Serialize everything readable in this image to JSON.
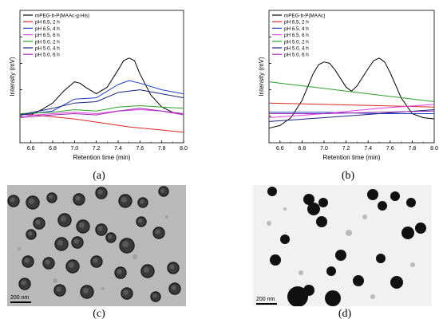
{
  "chart_data": [
    {
      "type": "line",
      "panel": "a",
      "xlabel": "Retention time (min)",
      "ylabel": "Intensity (mV)",
      "xlim": [
        6.5,
        8.0
      ],
      "ylim": [
        0,
        1
      ],
      "x_ticks": [
        "6.6",
        "6.8",
        "7.0",
        "7.2",
        "7.4",
        "7.6",
        "7.8",
        "8.0"
      ],
      "legend_position": "top-left",
      "series": [
        {
          "name": "mPEG-b-P(MAAc-g-His)",
          "color": "#000000",
          "x": [
            6.5,
            6.6,
            6.7,
            6.8,
            6.9,
            7.0,
            7.05,
            7.1,
            7.2,
            7.3,
            7.4,
            7.45,
            7.5,
            7.55,
            7.6,
            7.7,
            7.8,
            7.9,
            8.0
          ],
          "y": [
            0.22,
            0.21,
            0.25,
            0.3,
            0.39,
            0.46,
            0.45,
            0.42,
            0.37,
            0.42,
            0.55,
            0.62,
            0.64,
            0.62,
            0.52,
            0.36,
            0.27,
            0.23,
            0.21
          ]
        },
        {
          "name": "pH 6.5, 2 h",
          "color": "#d62728",
          "x": [
            6.5,
            6.75,
            7.0,
            7.25,
            7.5,
            7.75,
            8.0
          ],
          "y": [
            0.22,
            0.2,
            0.18,
            0.15,
            0.12,
            0.1,
            0.08
          ]
        },
        {
          "name": "pH 6.5, 4 h",
          "color": "#1f3fc4",
          "x": [
            6.5,
            6.8,
            7.0,
            7.2,
            7.4,
            7.5,
            7.6,
            7.8,
            8.0
          ],
          "y": [
            0.21,
            0.24,
            0.33,
            0.34,
            0.44,
            0.47,
            0.45,
            0.4,
            0.37
          ]
        },
        {
          "name": "pH 6.5, 6 h",
          "color": "#e040e0",
          "x": [
            6.5,
            6.8,
            7.0,
            7.2,
            7.4,
            7.6,
            7.8,
            8.0
          ],
          "y": [
            0.2,
            0.22,
            0.23,
            0.22,
            0.24,
            0.25,
            0.24,
            0.21
          ]
        },
        {
          "name": "pH 5.0, 2 h",
          "color": "#2ca02c",
          "x": [
            6.5,
            6.8,
            7.0,
            7.2,
            7.4,
            7.6,
            7.8,
            8.0
          ],
          "y": [
            0.22,
            0.23,
            0.25,
            0.24,
            0.27,
            0.28,
            0.27,
            0.26
          ]
        },
        {
          "name": "pH 5.0, 4 h",
          "color": "#1a237e",
          "x": [
            6.5,
            6.8,
            7.0,
            7.2,
            7.4,
            7.6,
            7.8,
            8.0
          ],
          "y": [
            0.21,
            0.26,
            0.3,
            0.31,
            0.38,
            0.4,
            0.37,
            0.34
          ]
        },
        {
          "name": "pH 5.0, 6 h",
          "color": "#9c27b0",
          "x": [
            6.5,
            6.8,
            7.0,
            7.2,
            7.4,
            7.6,
            7.8,
            8.0
          ],
          "y": [
            0.19,
            0.21,
            0.22,
            0.21,
            0.24,
            0.26,
            0.24,
            0.22
          ]
        }
      ]
    },
    {
      "type": "line",
      "panel": "b",
      "xlabel": "Retention time (min)",
      "ylabel": "Intensity (mV)",
      "xlim": [
        6.5,
        8.0
      ],
      "ylim": [
        0,
        1
      ],
      "x_ticks": [
        "6.6",
        "6.8",
        "7.0",
        "7.2",
        "7.4",
        "7.6",
        "7.8",
        "8.0"
      ],
      "legend_position": "top-left",
      "series": [
        {
          "name": "mPEG-b-P(MAAc)",
          "color": "#000000",
          "x": [
            6.5,
            6.6,
            6.7,
            6.8,
            6.9,
            6.95,
            7.0,
            7.05,
            7.1,
            7.2,
            7.25,
            7.3,
            7.4,
            7.45,
            7.5,
            7.55,
            7.6,
            7.7,
            7.8,
            7.9,
            8.0
          ],
          "y": [
            0.11,
            0.13,
            0.19,
            0.32,
            0.52,
            0.59,
            0.61,
            0.6,
            0.55,
            0.42,
            0.39,
            0.43,
            0.56,
            0.62,
            0.64,
            0.61,
            0.53,
            0.34,
            0.22,
            0.19,
            0.18
          ]
        },
        {
          "name": "pH 6.5, 2 h",
          "color": "#d62728",
          "x": [
            6.5,
            7.0,
            7.5,
            8.0
          ],
          "y": [
            0.3,
            0.29,
            0.28,
            0.27
          ]
        },
        {
          "name": "pH 6.5, 4 h",
          "color": "#1f3fc4",
          "x": [
            6.5,
            7.0,
            7.5,
            8.0
          ],
          "y": [
            0.23,
            0.23,
            0.22,
            0.22
          ]
        },
        {
          "name": "pH 6.5, 6 h",
          "color": "#e040e0",
          "x": [
            6.5,
            7.0,
            7.5,
            8.0
          ],
          "y": [
            0.19,
            0.22,
            0.26,
            0.29
          ]
        },
        {
          "name": "pH 5.0, 2 h",
          "color": "#2ca02c",
          "x": [
            6.5,
            7.0,
            7.5,
            8.0
          ],
          "y": [
            0.46,
            0.41,
            0.36,
            0.31
          ]
        },
        {
          "name": "pH 5.0, 4 h",
          "color": "#1a237e",
          "x": [
            6.5,
            7.0,
            7.5,
            8.0
          ],
          "y": [
            0.16,
            0.19,
            0.22,
            0.25
          ]
        },
        {
          "name": "pH 5.0, 6 h",
          "color": "#9c27b0",
          "x": [
            6.5,
            7.0,
            7.5,
            8.0
          ],
          "y": [
            0.22,
            0.22,
            0.23,
            0.24
          ]
        }
      ]
    }
  ],
  "captions": {
    "a": "(a)",
    "b": "(b)",
    "c": "(c)",
    "d": "(d)"
  },
  "micrographs": {
    "c": {
      "scale_bar_label": "200 nm",
      "background": "#b9b9b9",
      "particle_color": "#3a3a3a"
    },
    "d": {
      "scale_bar_label": "200 nm",
      "background": "#f1f1f1",
      "particle_color": "#111111"
    }
  }
}
